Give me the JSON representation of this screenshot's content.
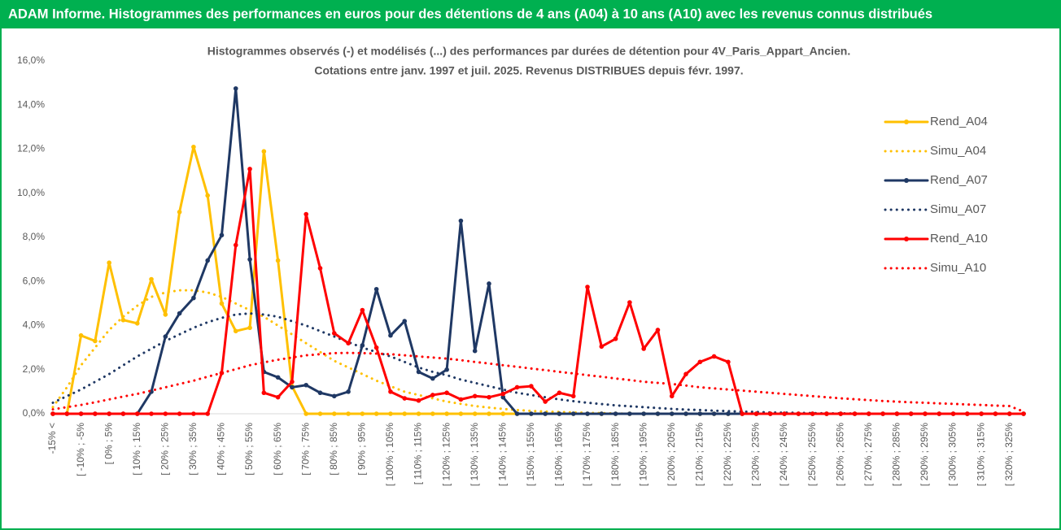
{
  "chart_data": {
    "type": "line",
    "title": "ADAM Informe. Histogrammes des performances en euros pour des détentions de 4 ans (A04) à 10 ans (A10) avec les revenus connus distribués",
    "subtitle": [
      "Histogrammes observés (-) et modélisés (...) des performances par durées de détention pour 4V_Paris_Appart_Ancien.",
      "Cotations entre janv. 1997 et juil. 2025. Revenus DISTRIBUES depuis févr. 1997."
    ],
    "categories": [
      "-15% <",
      null,
      "[ -10% ; -5%",
      null,
      "[ 0% ; 5%",
      null,
      "[ 10% ; 15%",
      null,
      "[ 20% ; 25%",
      null,
      "[ 30% ; 35%",
      null,
      "[ 40% ; 45%",
      null,
      "[ 50% ; 55%",
      null,
      "[ 60% ; 65%",
      null,
      "[ 70% ; 75%",
      null,
      "[ 80% ; 85%",
      null,
      "[ 90% ; 95%",
      null,
      "[ 100% ; 105%",
      null,
      "[ 110% ; 115%",
      null,
      "[ 120% ; 125%",
      null,
      "[ 130% ; 135%",
      null,
      "[ 140% ; 145%",
      null,
      "[ 150% ; 155%",
      null,
      "[ 160% ; 165%",
      null,
      "[ 170% ; 175%",
      null,
      "[ 180% ; 185%",
      null,
      "[ 190% ; 195%",
      null,
      "[ 200% ; 205%",
      null,
      "[ 210% ; 215%",
      null,
      "[ 220% ; 225%",
      null,
      "[ 230% ; 235%",
      null,
      "[ 240% ; 245%",
      null,
      "[ 250% ; 255%",
      null,
      "[ 260% ; 265%",
      null,
      "[ 270% ; 275%",
      null,
      "[ 280% ; 285%",
      null,
      "[ 290% ; 295%",
      null,
      "[ 300% ; 305%",
      null,
      "[ 310% ; 315%",
      null,
      "[ 320% ; 325%",
      null
    ],
    "series": [
      {
        "name": "Rend_A04",
        "color": "#ffc000",
        "line_style": "solid",
        "values": [
          0,
          0,
          3.55,
          3.3,
          6.85,
          4.25,
          4.1,
          6.1,
          4.5,
          9.15,
          12.1,
          9.9,
          5.0,
          3.75,
          3.9,
          11.9,
          6.95,
          1.25,
          0,
          0,
          0,
          0,
          0,
          0,
          0,
          0,
          0,
          0,
          0,
          0,
          0,
          0,
          0,
          0,
          0,
          0,
          0,
          0,
          0,
          0,
          0,
          0,
          0,
          0,
          0,
          0,
          0,
          0,
          0,
          0,
          0,
          0,
          0,
          0,
          0,
          0,
          0,
          0,
          0,
          0,
          0,
          0,
          0,
          0,
          0,
          0,
          0,
          0,
          0,
          0
        ]
      },
      {
        "name": "Simu_A04",
        "color": "#ffc000",
        "line_style": "dotted",
        "values": [
          0.3,
          1.2,
          2.2,
          3.0,
          3.8,
          4.4,
          4.9,
          5.3,
          5.5,
          5.6,
          5.6,
          5.5,
          5.3,
          5.0,
          4.7,
          4.4,
          4.0,
          3.6,
          3.2,
          2.8,
          2.4,
          2.1,
          1.8,
          1.5,
          1.25,
          1.0,
          0.85,
          0.7,
          0.55,
          0.45,
          0.35,
          0.28,
          0.22,
          0.17,
          0.13,
          0.1,
          0.08,
          0.06,
          0.04,
          0.03,
          0.02,
          0,
          0,
          0,
          0,
          0,
          0,
          0,
          0,
          0,
          0,
          0,
          0,
          0,
          0,
          0,
          0,
          0,
          0,
          0,
          0,
          0,
          0,
          0,
          0,
          0,
          0,
          0,
          0,
          0
        ]
      },
      {
        "name": "Rend_A07",
        "color": "#1f3864",
        "line_style": "solid",
        "values": [
          0,
          0,
          0,
          0,
          0,
          0,
          0,
          1.0,
          3.5,
          4.55,
          5.25,
          6.95,
          8.1,
          14.75,
          7.0,
          1.9,
          1.65,
          1.2,
          1.3,
          0.95,
          0.8,
          1.0,
          3.1,
          5.65,
          3.55,
          4.2,
          1.9,
          1.6,
          2.0,
          8.75,
          2.85,
          5.9,
          0.75,
          0,
          0,
          0,
          0,
          0,
          0,
          0,
          0,
          0,
          0,
          0,
          0,
          0,
          0,
          0,
          0,
          0,
          0,
          0,
          0,
          0,
          0,
          0,
          0,
          0,
          0,
          0,
          0,
          0,
          0,
          0,
          0,
          0,
          0,
          0,
          0,
          0
        ]
      },
      {
        "name": "Simu_A07",
        "color": "#1f3864",
        "line_style": "dotted",
        "values": [
          0.5,
          0.8,
          1.1,
          1.45,
          1.8,
          2.2,
          2.6,
          2.95,
          3.3,
          3.6,
          3.9,
          4.15,
          4.35,
          4.5,
          4.55,
          4.5,
          4.4,
          4.2,
          4.0,
          3.75,
          3.5,
          3.25,
          3.0,
          2.8,
          2.6,
          2.35,
          2.1,
          1.9,
          1.75,
          1.55,
          1.4,
          1.25,
          1.1,
          0.95,
          0.85,
          0.75,
          0.65,
          0.57,
          0.5,
          0.44,
          0.38,
          0.34,
          0.3,
          0.26,
          0.22,
          0.19,
          0.17,
          0.14,
          0.12,
          0.1,
          0.08,
          0.06,
          0.05,
          0.04,
          0.03,
          0.02,
          0.02,
          0.01,
          0,
          0,
          0,
          0,
          0,
          0,
          0,
          0,
          0,
          0,
          0,
          0
        ]
      },
      {
        "name": "Rend_A10",
        "color": "#ff0000",
        "line_style": "solid",
        "values": [
          0,
          0,
          0,
          0,
          0,
          0,
          0,
          0,
          0,
          0,
          0,
          0,
          1.85,
          7.65,
          11.1,
          0.95,
          0.75,
          1.45,
          9.05,
          6.6,
          3.65,
          3.2,
          4.7,
          3.0,
          1.0,
          0.7,
          0.6,
          0.85,
          0.95,
          0.65,
          0.8,
          0.75,
          0.9,
          1.2,
          1.25,
          0.55,
          0.95,
          0.8,
          5.75,
          3.05,
          3.4,
          5.05,
          2.95,
          3.8,
          0.8,
          1.8,
          2.35,
          2.6,
          2.35,
          0,
          0,
          0,
          0,
          0,
          0,
          0,
          0,
          0,
          0,
          0,
          0,
          0,
          0,
          0,
          0,
          0,
          0,
          0,
          0,
          0
        ]
      },
      {
        "name": "Simu_A10",
        "color": "#ff0000",
        "line_style": "dotted",
        "values": [
          0.2,
          0.3,
          0.4,
          0.52,
          0.65,
          0.78,
          0.9,
          1.05,
          1.2,
          1.35,
          1.5,
          1.68,
          1.85,
          2.02,
          2.2,
          2.33,
          2.45,
          2.55,
          2.65,
          2.7,
          2.75,
          2.76,
          2.75,
          2.73,
          2.7,
          2.65,
          2.6,
          2.55,
          2.5,
          2.43,
          2.35,
          2.28,
          2.2,
          2.13,
          2.05,
          1.98,
          1.9,
          1.83,
          1.75,
          1.68,
          1.6,
          1.53,
          1.45,
          1.4,
          1.35,
          1.28,
          1.2,
          1.15,
          1.1,
          1.05,
          1.0,
          0.95,
          0.9,
          0.85,
          0.8,
          0.75,
          0.7,
          0.66,
          0.62,
          0.58,
          0.55,
          0.52,
          0.5,
          0.47,
          0.45,
          0.42,
          0.4,
          0.37,
          0.35,
          0.1
        ]
      }
    ],
    "ylim": [
      0,
      16
    ],
    "yticks": [
      {
        "value": 0,
        "label": "0,0%"
      },
      {
        "value": 2,
        "label": "2,0%"
      },
      {
        "value": 4,
        "label": "4,0%"
      },
      {
        "value": 6,
        "label": "6,0%"
      },
      {
        "value": 8,
        "label": "8,0%"
      },
      {
        "value": 10,
        "label": "10,0%"
      },
      {
        "value": 12,
        "label": "12,0%"
      },
      {
        "value": 14,
        "label": "14,0%"
      },
      {
        "value": 16,
        "label": "16,0%"
      }
    ],
    "grid": false,
    "legend": "right"
  }
}
